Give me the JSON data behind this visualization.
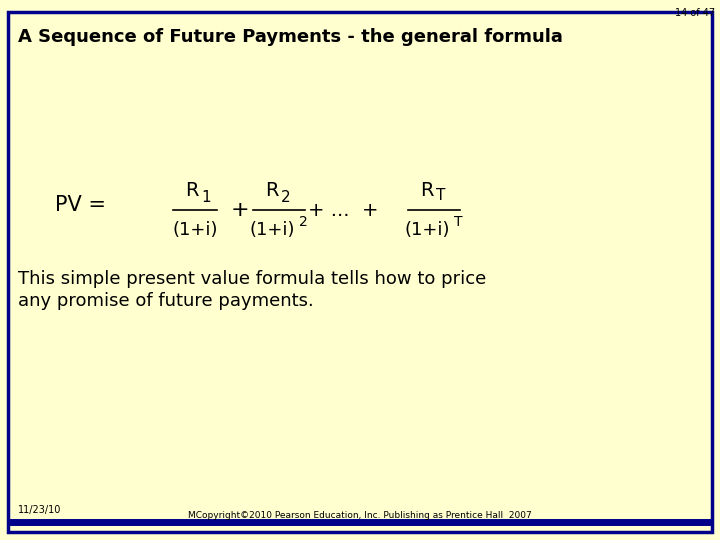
{
  "slide_number": "14 of 47",
  "title": "A Sequence of Future Payments - the general formula",
  "bg_color": "#FFFFD0",
  "border_color": "#00008B",
  "title_color": "#000000",
  "body_text_1": "This simple present value formula tells how to price",
  "body_text_2": "any promise of future payments.",
  "footer_date": "11/23/10",
  "footer_copyright": "MCopyright©2010 Pearson Education, Inc. Publishing as Prentice Hall  2007",
  "slide_num_color": "#000000",
  "title_fontsize": 13,
  "body_fontsize": 13,
  "formula_fontsize": 14,
  "footer_fontsize": 7
}
